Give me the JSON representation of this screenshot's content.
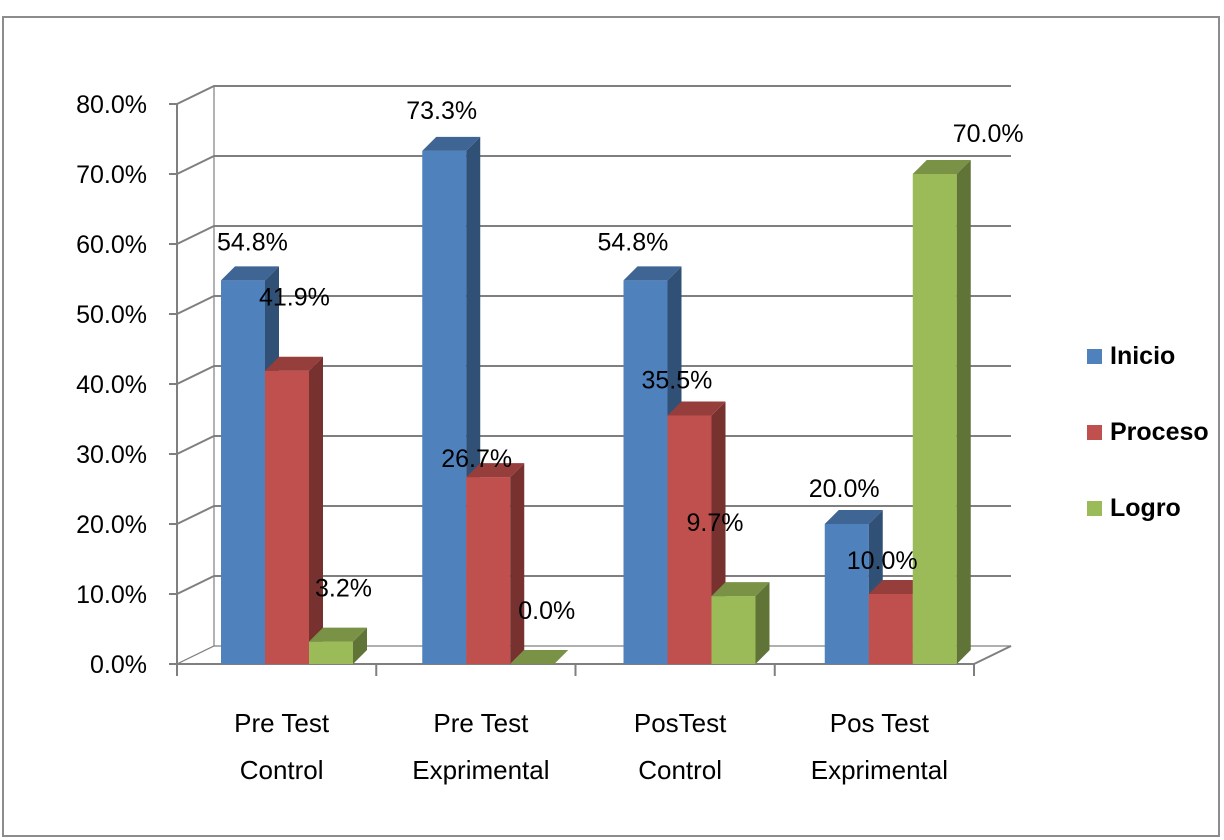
{
  "chart_data": {
    "type": "bar",
    "categories": [
      [
        "Pre Test",
        "Control"
      ],
      [
        "Pre Test",
        "Exprimental"
      ],
      [
        "PosTest",
        "Control"
      ],
      [
        "Pos Test",
        "Exprimental"
      ]
    ],
    "series": [
      {
        "name": "Inicio",
        "color": "#4f81bd",
        "values": [
          54.8,
          73.3,
          54.8,
          20.0
        ],
        "labels": [
          "54.8%",
          "73.3%",
          "54.8%",
          "20.0%"
        ]
      },
      {
        "name": "Proceso",
        "color": "#c0504d",
        "values": [
          41.9,
          26.7,
          35.5,
          10.0
        ],
        "labels": [
          "41.9%",
          "26.7%",
          "35.5%",
          "10.0%"
        ]
      },
      {
        "name": "Logro",
        "color": "#9bbb59",
        "values": [
          3.2,
          0.0,
          9.7,
          70.0
        ],
        "labels": [
          "3.2%",
          "0.0%",
          "9.7%",
          "70.0%"
        ]
      }
    ],
    "y_ticks": [
      "0.0%",
      "10.0%",
      "20.0%",
      "30.0%",
      "40.0%",
      "50.0%",
      "60.0%",
      "70.0%",
      "80.0%"
    ],
    "ylim": [
      0,
      80
    ],
    "title": "",
    "xlabel": "",
    "ylabel": "",
    "grid": true,
    "style": "3d-clustered-column",
    "legend_position": "right"
  }
}
